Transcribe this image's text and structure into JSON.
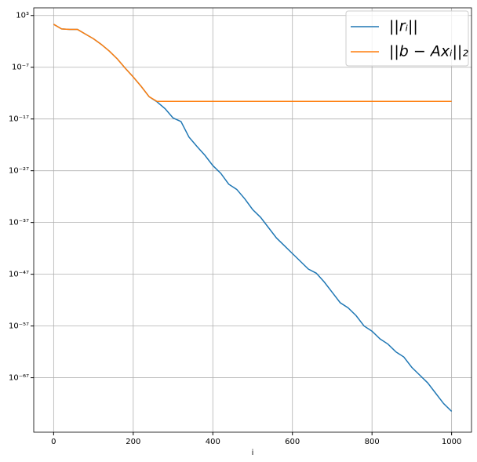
{
  "chart_data": {
    "type": "line",
    "xlabel": "i",
    "log_y": true,
    "grid": true,
    "legend": "upper right",
    "xlim": [
      -50,
      1050
    ],
    "xticks": [
      0,
      200,
      400,
      600,
      800,
      1000
    ],
    "ylim": [
      3e-78,
      30000.0
    ],
    "yticks": [
      {
        "value": 1000.0,
        "label": "10³"
      },
      {
        "value": 1e-07,
        "label": "10⁻⁷"
      },
      {
        "value": 1e-17,
        "label": "10⁻¹⁷"
      },
      {
        "value": 1e-27,
        "label": "10⁻²⁷"
      },
      {
        "value": 1e-37,
        "label": "10⁻³⁷"
      },
      {
        "value": 1e-47,
        "label": "10⁻⁴⁷"
      },
      {
        "value": 1e-57,
        "label": "10⁻⁵⁷"
      },
      {
        "value": 1e-67,
        "label": "10⁻⁶⁷"
      }
    ],
    "x": [
      0,
      20,
      40,
      60,
      80,
      100,
      120,
      140,
      160,
      180,
      200,
      220,
      240,
      260,
      280,
      300,
      320,
      340,
      360,
      380,
      400,
      420,
      440,
      460,
      480,
      500,
      520,
      540,
      560,
      580,
      600,
      620,
      640,
      660,
      680,
      700,
      720,
      740,
      760,
      780,
      800,
      820,
      840,
      860,
      880,
      900,
      920,
      940,
      960,
      980,
      1000
    ],
    "series": [
      {
        "name": "||rᵢ||",
        "color": "#1f77b4",
        "values": [
          20,
          2.5,
          2,
          2,
          0.25,
          0.032,
          0.0025,
          0.00013,
          4e-06,
          6.3e-08,
          1.3e-09,
          2e-11,
          2e-13,
          2e-14,
          1e-15,
          1.6e-17,
          3.2e-18,
          3.2e-21,
          5e-23,
          1e-24,
          1e-26,
          3.2e-28,
          2.5e-30,
          2.5e-31,
          4e-33,
          3.2e-35,
          1e-36,
          1e-38,
          1e-40,
          3.2e-42,
          1e-43,
          3.2e-45,
          1e-46,
          1.6e-47,
          3.2e-49,
          3.2e-51,
          3.2e-53,
          3.2e-54,
          1e-55,
          1e-57,
          1e-58,
          3.2e-60,
          3.2e-61,
          1e-62,
          1e-63,
          1e-65,
          3.2e-67,
          1e-68,
          1e-70,
          1e-72,
          3.2e-74
        ]
      },
      {
        "name": "||b − Axᵢ||₂",
        "color": "#ff7f0e",
        "values": [
          20,
          2.5,
          2,
          2,
          0.25,
          0.032,
          0.0025,
          0.00013,
          4e-06,
          6.3e-08,
          1.3e-09,
          2e-11,
          2e-13,
          2.5e-14,
          2.5e-14,
          2.5e-14,
          2.5e-14,
          2.5e-14,
          2.5e-14,
          2.5e-14,
          2.5e-14,
          2.5e-14,
          2.5e-14,
          2.5e-14,
          2.5e-14,
          2.5e-14,
          2.5e-14,
          2.5e-14,
          2.5e-14,
          2.5e-14,
          2.5e-14,
          2.5e-14,
          2.5e-14,
          2.5e-14,
          2.5e-14,
          2.5e-14,
          2.5e-14,
          2.5e-14,
          2.5e-14,
          2.5e-14,
          2.5e-14,
          2.5e-14,
          2.5e-14,
          2.5e-14,
          2.5e-14,
          2.5e-14,
          2.5e-14,
          2.5e-14,
          2.5e-14,
          2.5e-14,
          2.5e-14
        ]
      }
    ]
  }
}
